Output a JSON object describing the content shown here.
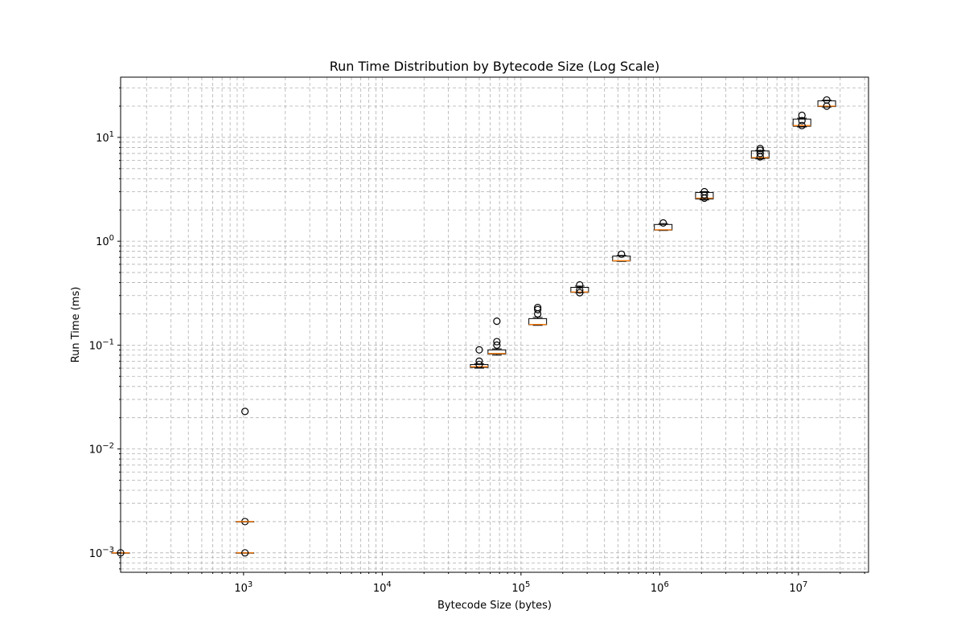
{
  "chart_data": {
    "type": "box",
    "title": "Run Time Distribution by Bytecode Size (Log Scale)",
    "xlabel": "Bytecode Size (bytes)",
    "ylabel": "Run Time (ms)",
    "xscale": "log",
    "yscale": "log",
    "xlim": [
      130,
      32000000
    ],
    "ylim": [
      0.00065,
      38
    ],
    "grid": true,
    "x_ticks": [
      {
        "value": 1000,
        "base": "10",
        "exp": "3"
      },
      {
        "value": 10000,
        "base": "10",
        "exp": "4"
      },
      {
        "value": 100000,
        "base": "10",
        "exp": "5"
      },
      {
        "value": 1000000,
        "base": "10",
        "exp": "6"
      },
      {
        "value": 10000000,
        "base": "10",
        "exp": "7"
      }
    ],
    "y_ticks": [
      {
        "value": 0.001,
        "base": "10",
        "exp": "−3"
      },
      {
        "value": 0.01,
        "base": "10",
        "exp": "−2"
      },
      {
        "value": 0.1,
        "base": "10",
        "exp": "−1"
      },
      {
        "value": 1,
        "base": "10",
        "exp": "0"
      },
      {
        "value": 10,
        "base": "10",
        "exp": "1"
      }
    ],
    "boxes": [
      {
        "x": 130,
        "q1": 0.001,
        "median": 0.001,
        "q3": 0.001,
        "whislo": 0.001,
        "whishi": 0.001,
        "fliers": [
          0.001
        ]
      },
      {
        "x": 1024,
        "q1": 0.001,
        "median": 0.001,
        "q3": 0.001,
        "whislo": 0.001,
        "whishi": 0.001,
        "fliers": [
          0.001,
          0.002,
          0.023
        ]
      },
      {
        "x": 1025,
        "q1": 0.002,
        "median": 0.002,
        "q3": 0.002,
        "whislo": 0.002,
        "whishi": 0.002,
        "fliers": []
      },
      {
        "x": 50000,
        "q1": 0.061,
        "median": 0.062,
        "q3": 0.065,
        "whislo": 0.06,
        "whishi": 0.066,
        "fliers": [
          0.065,
          0.07,
          0.09
        ]
      },
      {
        "x": 67000,
        "q1": 0.082,
        "median": 0.083,
        "q3": 0.09,
        "whislo": 0.08,
        "whishi": 0.092,
        "fliers": [
          0.1,
          0.108,
          0.17
        ]
      },
      {
        "x": 132000,
        "q1": 0.157,
        "median": 0.158,
        "q3": 0.18,
        "whislo": 0.155,
        "whishi": 0.185,
        "fliers": [
          0.2,
          0.22,
          0.23
        ]
      },
      {
        "x": 265000,
        "q1": 0.322,
        "median": 0.325,
        "q3": 0.36,
        "whislo": 0.32,
        "whishi": 0.37,
        "fliers": [
          0.32,
          0.34,
          0.38
        ]
      },
      {
        "x": 530000,
        "q1": 0.645,
        "median": 0.65,
        "q3": 0.72,
        "whislo": 0.64,
        "whishi": 0.73,
        "fliers": [
          0.75
        ]
      },
      {
        "x": 1060000,
        "q1": 1.28,
        "median": 1.29,
        "q3": 1.45,
        "whislo": 1.27,
        "whishi": 1.48,
        "fliers": [
          1.5
        ]
      },
      {
        "x": 2100000,
        "q1": 2.55,
        "median": 2.6,
        "q3": 2.95,
        "whislo": 2.5,
        "whishi": 3.0,
        "fliers": [
          2.6,
          2.8,
          3.0
        ]
      },
      {
        "x": 5300000,
        "q1": 6.3,
        "median": 6.4,
        "q3": 7.4,
        "whislo": 6.2,
        "whishi": 7.5,
        "fliers": [
          6.5,
          7.0,
          7.5,
          7.8
        ]
      },
      {
        "x": 10600000,
        "q1": 12.8,
        "median": 13.0,
        "q3": 15.0,
        "whislo": 12.6,
        "whishi": 15.3,
        "fliers": [
          13.0,
          14.5,
          16.3
        ]
      },
      {
        "x": 16000000,
        "q1": 19.8,
        "median": 20.0,
        "q3": 22.5,
        "whislo": 19.6,
        "whishi": 22.8,
        "fliers": [
          20.0,
          22.9
        ]
      }
    ]
  }
}
